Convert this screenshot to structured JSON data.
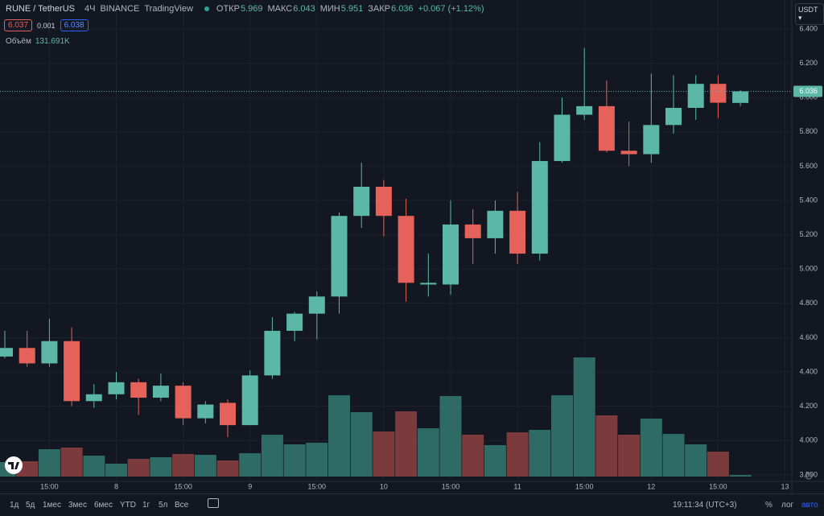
{
  "chart_data": {
    "type": "candlestick",
    "title": "RUNE / TetherUS",
    "interval": "4Ч",
    "exchange": "BINANCE",
    "source": "TradingView",
    "ohlc_labels": [
      "ОТКР",
      "МАКС",
      "МИН",
      "ЗАКР"
    ],
    "change_label": "+0.067 (+1.12%)",
    "bid": 6.037,
    "spread": 0.001,
    "ask": 6.038,
    "volume_name": "Объём",
    "volume_label": "131.691K",
    "currency": "USDT",
    "categories": [
      null,
      null,
      "15:00",
      null,
      null,
      "8",
      null,
      null,
      "15:00",
      null,
      null,
      "9",
      null,
      null,
      "15:00",
      null,
      null,
      "10",
      null,
      null,
      "15:00",
      null,
      null,
      "11",
      null,
      null,
      "15:00",
      null,
      null,
      "12",
      null,
      null,
      "15:00",
      null,
      null,
      "13"
    ],
    "open": [
      4.49,
      4.54,
      4.45,
      4.58,
      4.23,
      4.27,
      4.34,
      4.25,
      4.32,
      4.13,
      4.22,
      4.09,
      4.38,
      4.64,
      4.74,
      4.84,
      5.31,
      5.48,
      5.31,
      4.91,
      4.91,
      5.26,
      5.18,
      5.34,
      5.09,
      5.63,
      5.9,
      5.95,
      5.69,
      5.67,
      5.84,
      5.94,
      6.08,
      5.969,
      null,
      null
    ],
    "high": [
      4.64,
      4.64,
      4.71,
      4.66,
      4.33,
      4.4,
      4.36,
      4.39,
      4.34,
      4.23,
      4.24,
      4.41,
      4.72,
      4.75,
      4.87,
      5.33,
      5.62,
      5.52,
      5.41,
      5.09,
      5.4,
      5.35,
      5.4,
      5.45,
      5.74,
      6.0,
      6.29,
      6.1,
      5.86,
      6.14,
      6.13,
      6.13,
      6.13,
      6.043,
      null,
      null
    ],
    "low": [
      4.48,
      4.43,
      4.43,
      4.2,
      4.19,
      4.24,
      4.15,
      4.23,
      4.09,
      4.1,
      4.02,
      4.09,
      4.36,
      4.58,
      4.59,
      4.74,
      5.24,
      5.19,
      4.81,
      4.84,
      4.85,
      5.03,
      5.09,
      5.03,
      5.05,
      5.62,
      5.87,
      5.68,
      5.6,
      5.62,
      5.79,
      5.87,
      5.88,
      5.951,
      null,
      null
    ],
    "close": [
      4.54,
      4.45,
      4.58,
      4.23,
      4.27,
      4.34,
      4.25,
      4.32,
      4.13,
      4.21,
      4.09,
      4.38,
      4.64,
      4.74,
      4.84,
      5.31,
      5.48,
      5.31,
      4.92,
      4.92,
      5.26,
      5.18,
      5.34,
      5.09,
      5.63,
      5.9,
      5.95,
      5.69,
      5.67,
      5.84,
      5.94,
      6.08,
      5.97,
      6.036,
      null,
      null
    ],
    "volume": [
      1188,
      1254,
      2244,
      2376,
      1716,
      1056,
      1452,
      1584,
      1848,
      1782,
      1320,
      1914,
      3432,
      2640,
      2772,
      6666,
      5280,
      3696,
      5346,
      3960,
      6600,
      3432,
      2574,
      3630,
      3828,
      6666,
      9768,
      5016,
      3432,
      4752,
      3498,
      2640,
      2046,
      131.691,
      null,
      null
    ],
    "up_color": "#5cb8a6",
    "down_color": "#e4625a",
    "up_volume_color": "#2e6b64",
    "down_volume_color": "#7b3a3b",
    "ylim": [
      3.762,
      6.569
    ],
    "yticks": [
      {
        "value": 3.8,
        "label": "3.800"
      },
      {
        "value": 4.0,
        "label": "4.000"
      },
      {
        "value": 4.2,
        "label": "4.200"
      },
      {
        "value": 4.4,
        "label": "4.400"
      },
      {
        "value": 4.6,
        "label": "4.600"
      },
      {
        "value": 4.8,
        "label": "4.800"
      },
      {
        "value": 5.0,
        "label": "5.000"
      },
      {
        "value": 5.2,
        "label": "5.200"
      },
      {
        "value": 5.4,
        "label": "5.400"
      },
      {
        "value": 5.6,
        "label": "5.600"
      },
      {
        "value": 5.8,
        "label": "5.800"
      },
      {
        "value": 6.0,
        "label": "6.000"
      },
      {
        "value": 6.2,
        "label": "6.200"
      },
      {
        "value": 6.4,
        "label": "6.400"
      }
    ],
    "grid": true
  },
  "toolbar": {
    "ranges": [
      "1д",
      "5д",
      "1мес",
      "3мес",
      "6мес",
      "YTD",
      "1г",
      "5л",
      "Все"
    ],
    "clock": "19:11:34 (UTC+3)",
    "percent": "%",
    "log": "лог",
    "auto": "авто"
  }
}
